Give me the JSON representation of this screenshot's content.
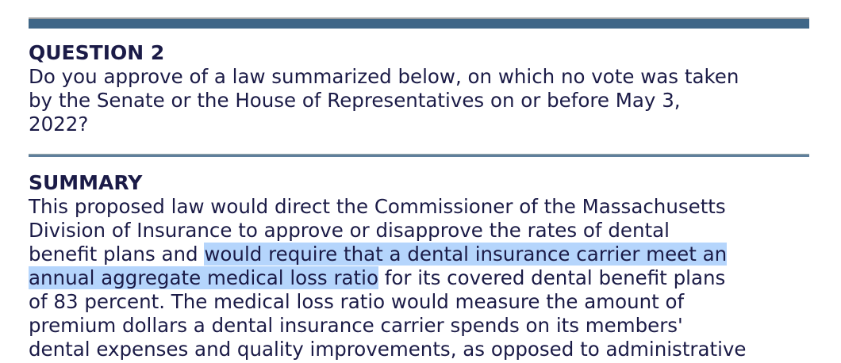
{
  "question": {
    "heading": "QUESTION 2",
    "lines": [
      "Do you approve of a law summarized below, on which no vote was taken",
      "by the Senate or the House of Representatives on or before May 3,",
      "2022?"
    ]
  },
  "summary": {
    "heading": "SUMMARY",
    "line1": "This proposed law would direct the Commissioner of the Massachusetts",
    "line2": "Division of Insurance to approve or disapprove the rates of dental",
    "line3_pre": "benefit plans and ",
    "line3_hl": "would require that a dental insurance carrier meet an",
    "line4_hl": "annual aggregate medical loss ratio",
    "line4_post": " for its covered dental benefit plans",
    "line5": "of 83 percent. The medical loss ratio would measure the amount of",
    "line6": "premium dollars a dental insurance carrier spends on its members'",
    "line7": "dental expenses and quality improvements, as opposed to administrative"
  },
  "colors": {
    "bar": "#3f6687",
    "text": "#1b1b47",
    "highlight": "#b5d5fc"
  }
}
